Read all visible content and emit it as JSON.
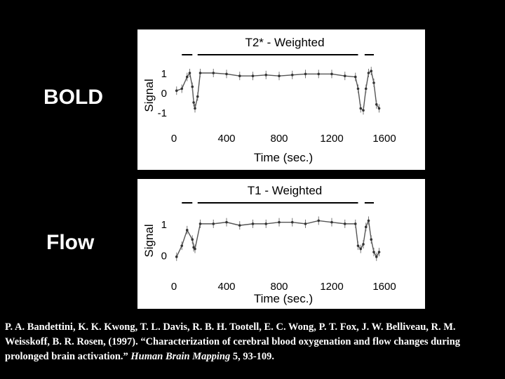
{
  "side_labels": {
    "top": "BOLD",
    "bottom": "Flow"
  },
  "citation": {
    "authors_and_title": "P. A. Bandettini, K. K. Kwong, T. L. Davis, R. B. H. Tootell, E. C. Wong, P. T. Fox, J. W. Belliveau, R. M. Weisskoff, B. R. Rosen, (1997). “Characterization of cerebral blood oxygenation and flow changes during prolonged brain activation.” ",
    "journal": "Human Brain Mapping",
    "volume_pages": " 5, 93-109."
  },
  "chart_data": [
    {
      "type": "scatter",
      "title": "T2* - Weighted",
      "xlabel": "Time (sec.)",
      "ylabel": "Signal",
      "xlim": [
        0,
        1600
      ],
      "ylim": [
        -1.5,
        1.5
      ],
      "xticks": [
        "0",
        "400",
        "800",
        "1200",
        "1600"
      ],
      "yticks": [
        "1",
        "0",
        "-1"
      ],
      "stimulus_bars": [
        [
          60,
          140
        ],
        [
          180,
          1400
        ],
        [
          1450,
          1520
        ]
      ],
      "series": [
        {
          "name": "BOLD signal",
          "x": [
            20,
            60,
            100,
            120,
            140,
            150,
            160,
            180,
            200,
            300,
            400,
            500,
            600,
            700,
            800,
            900,
            1000,
            1100,
            1200,
            1300,
            1380,
            1400,
            1420,
            1440,
            1460,
            1480,
            1500,
            1520,
            1540,
            1560
          ],
          "y": [
            0.1,
            0.2,
            0.8,
            1.0,
            0.3,
            -0.5,
            -0.8,
            -0.2,
            1.0,
            1.0,
            0.95,
            0.85,
            0.85,
            0.9,
            0.85,
            0.9,
            0.95,
            0.95,
            0.95,
            0.85,
            0.8,
            0.2,
            -0.8,
            -0.9,
            0.2,
            1.0,
            1.1,
            0.5,
            -0.6,
            -0.8
          ]
        }
      ]
    },
    {
      "type": "scatter",
      "title": "T1 - Weighted",
      "xlabel": "Time (sec.)",
      "ylabel": "Signal",
      "xlim": [
        0,
        1600
      ],
      "ylim": [
        -0.3,
        1.4
      ],
      "xticks": [
        "0",
        "400",
        "800",
        "1200",
        "1600"
      ],
      "yticks": [
        "1",
        "0"
      ],
      "stimulus_bars": [
        [
          60,
          140
        ],
        [
          180,
          1400
        ],
        [
          1450,
          1520
        ]
      ],
      "series": [
        {
          "name": "Flow signal",
          "x": [
            20,
            60,
            100,
            140,
            150,
            160,
            200,
            300,
            400,
            500,
            600,
            700,
            800,
            900,
            1000,
            1100,
            1200,
            1300,
            1380,
            1400,
            1420,
            1440,
            1460,
            1480,
            1500,
            1520,
            1540,
            1560
          ],
          "y": [
            -0.05,
            0.3,
            0.8,
            0.5,
            0.25,
            0.2,
            1.0,
            1.0,
            1.05,
            0.95,
            1.0,
            1.0,
            1.05,
            1.05,
            1.0,
            1.1,
            1.05,
            1.0,
            1.0,
            0.3,
            0.2,
            0.35,
            0.9,
            1.1,
            0.5,
            0.1,
            -0.05,
            0.1
          ]
        }
      ]
    }
  ]
}
